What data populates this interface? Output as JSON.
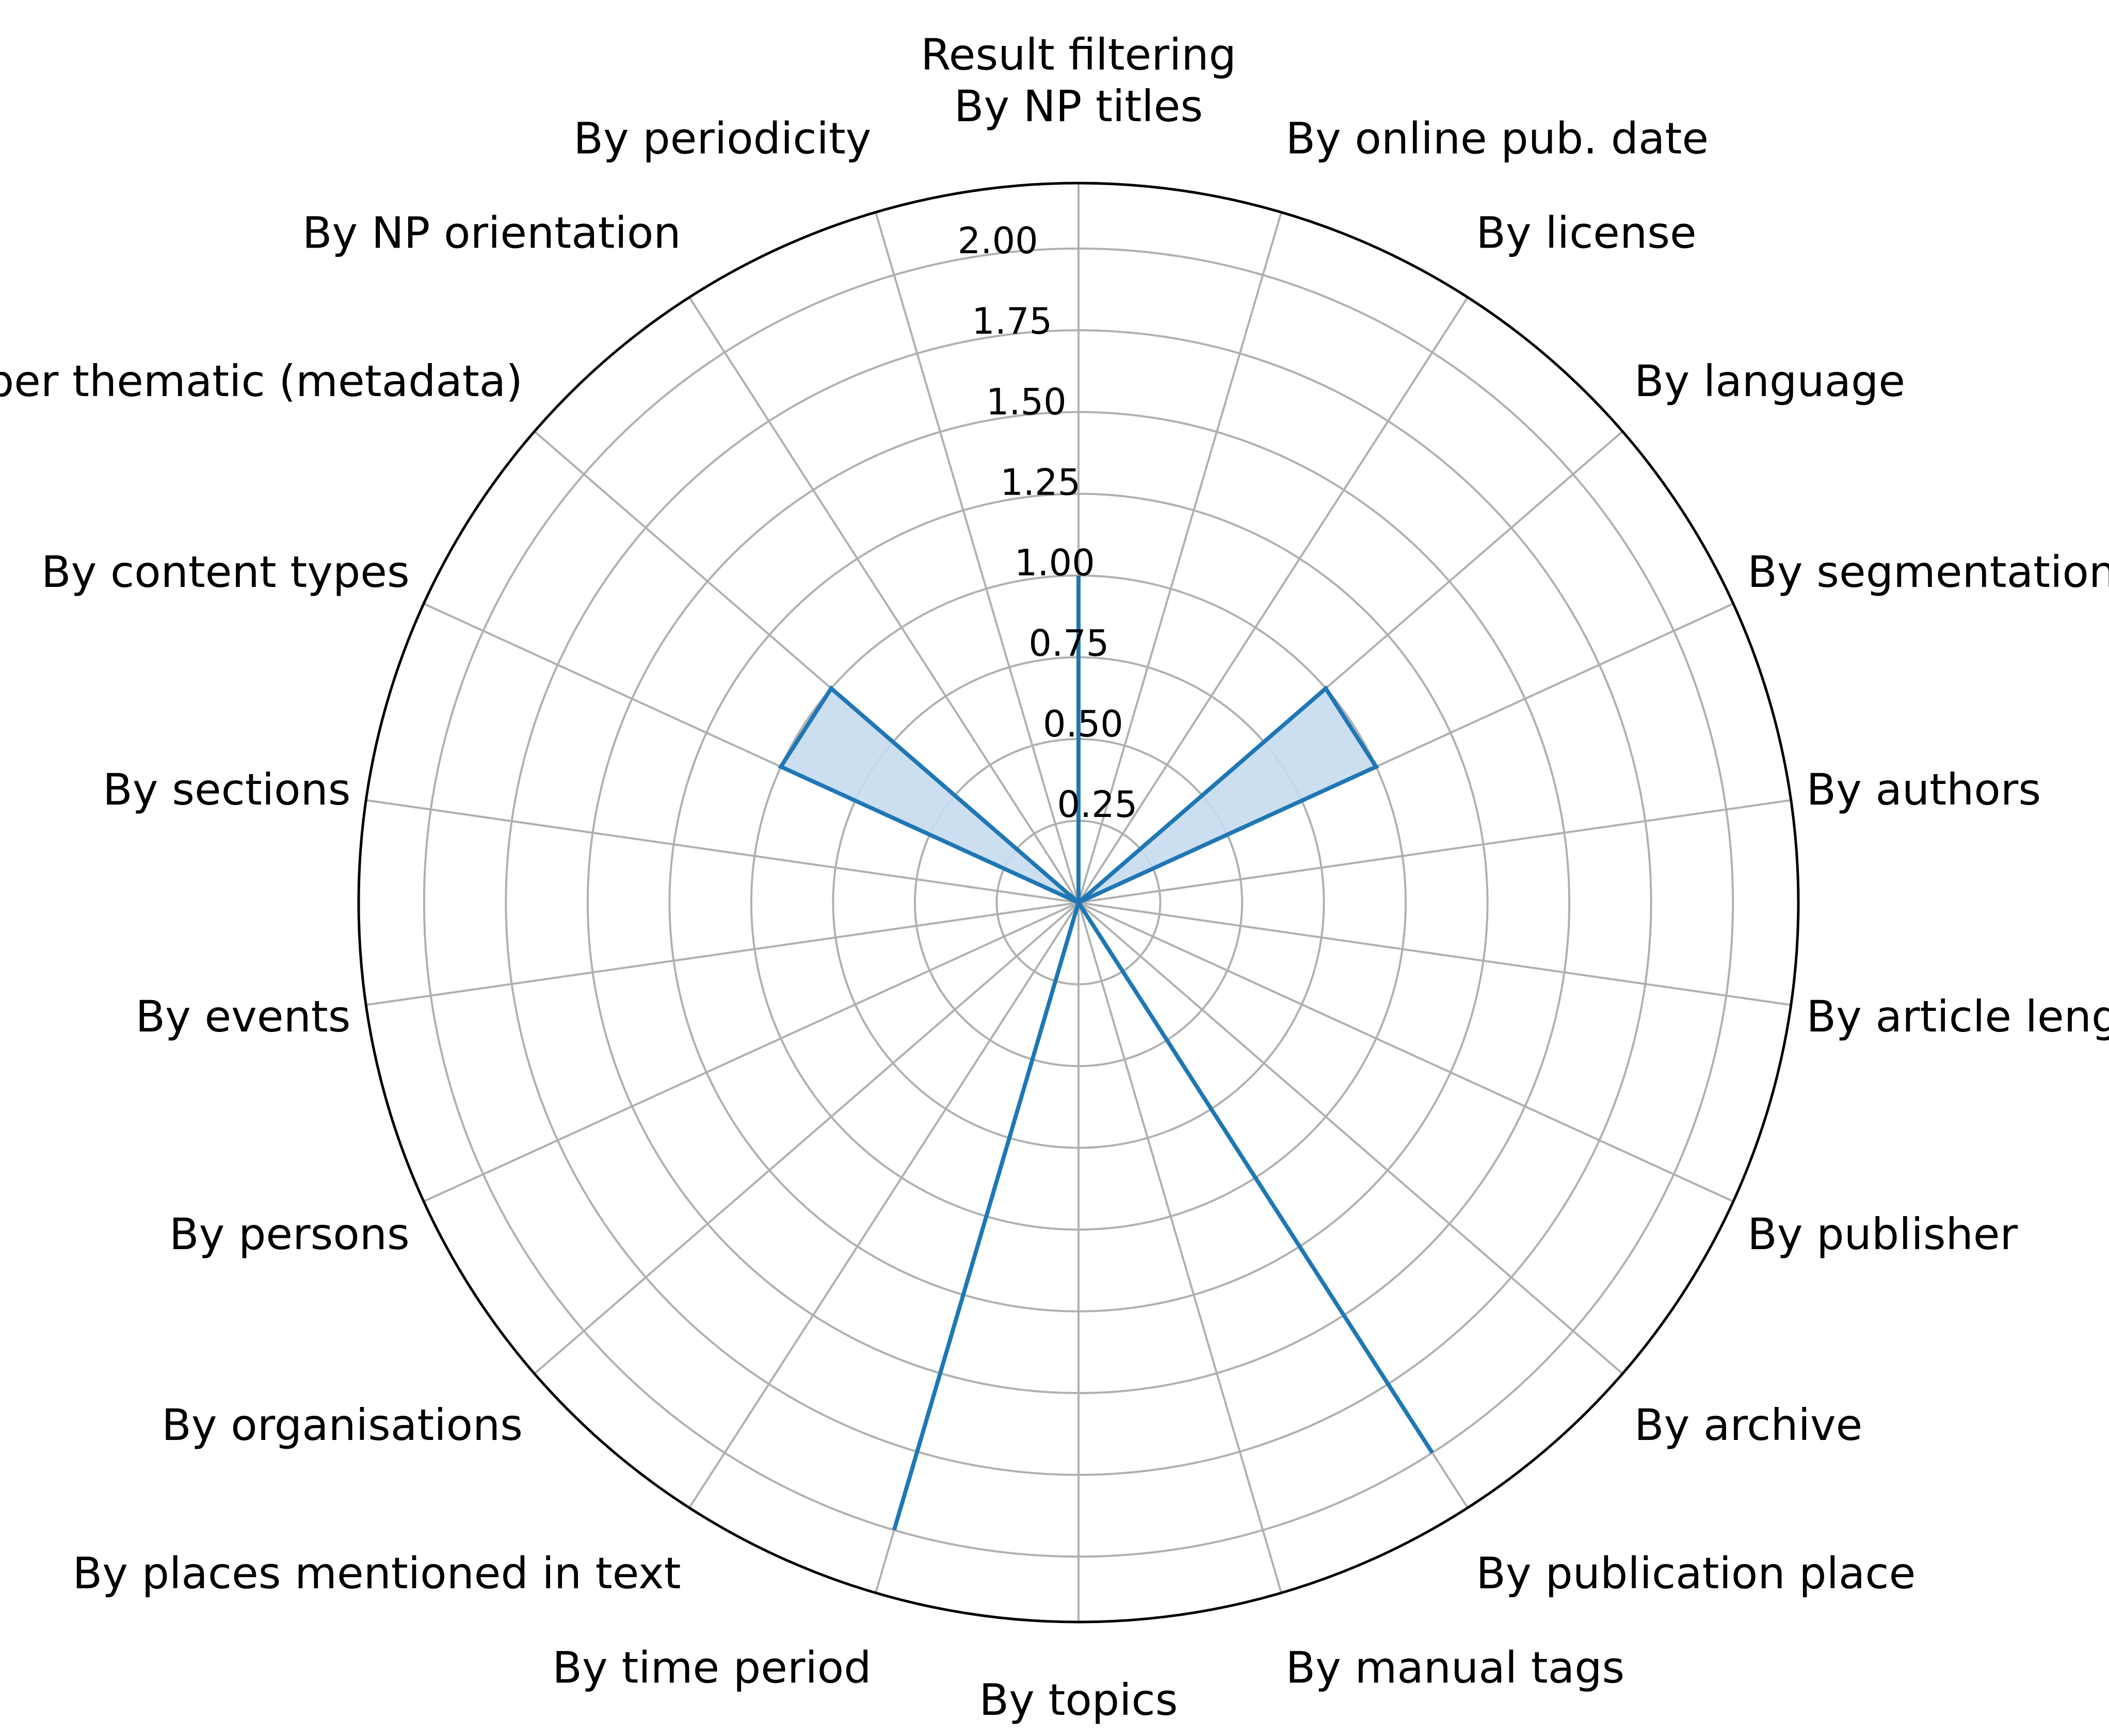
{
  "chart_data": {
    "type": "radar",
    "title": "Result filtering",
    "categories": [
      "By NP titles",
      "By online pub. date",
      "By license",
      "By language",
      "By segmentation level",
      "By authors",
      "By article length",
      "By publisher",
      "By archive",
      "By publication place",
      "By manual tags",
      "By topics",
      "By time period",
      "By places mentioned in text",
      "By organisations",
      "By persons",
      "By events",
      "By sections",
      "By content types",
      "By newspaper thematic (metadata)",
      "By NP orientation",
      "By periodicity"
    ],
    "series": [
      {
        "values": [
          1,
          0,
          0,
          1,
          1,
          0,
          0,
          0,
          0,
          2,
          0,
          0,
          2,
          0,
          0,
          0,
          0,
          0,
          1,
          1,
          0,
          0
        ],
        "color": "#1f77b4",
        "fill": "#c6dbef"
      }
    ],
    "rlim": [
      0,
      2.2
    ],
    "rticks": [
      "0.25",
      "0.50",
      "0.75",
      "1.00",
      "1.25",
      "1.50",
      "1.75",
      "2.00"
    ],
    "grid": true,
    "direction": "clockwise",
    "start": "top"
  }
}
